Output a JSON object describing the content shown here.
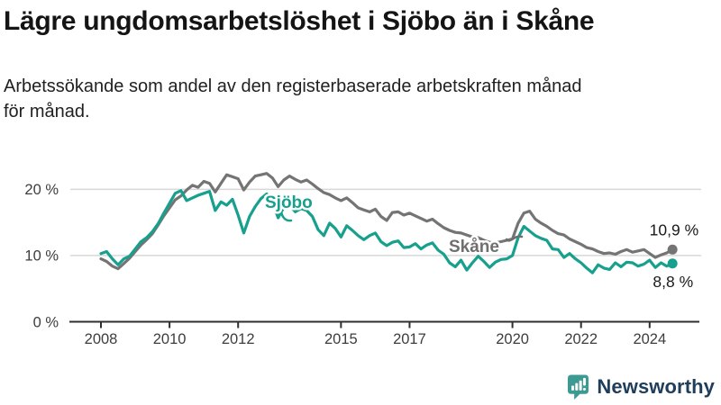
{
  "header": {
    "title": "Lägre ungdomsarbetslöshet i Sjöbo än i Skåne",
    "subtitle_line1": "Arbetssökande som andel av den registerbaserade arbetskraften månad",
    "subtitle_line2": "för månad."
  },
  "chart_data": {
    "type": "line",
    "title": "Lägre ungdomsarbetslöshet i Sjöbo än i Skåne",
    "subtitle": "Arbetssökande som andel av den registerbaserade arbetskraften månad för månad.",
    "x_start": 2008,
    "x_step_years": 0.1666667,
    "xlim": [
      2007.9,
      2025.4
    ],
    "ylim": [
      0,
      28
    ],
    "grid": "horizontal-only",
    "legend_position": "inline-labels",
    "x_ticks": [
      2008,
      2010,
      2012,
      2015,
      2017,
      2020,
      2022,
      2024
    ],
    "y_ticks": [
      {
        "value": 0,
        "label": "0 %"
      },
      {
        "value": 10,
        "label": "10 %"
      },
      {
        "value": 20,
        "label": "20 %"
      }
    ],
    "series": [
      {
        "name": "Skåne",
        "color": "#747474",
        "label_color": "#6f6f6f",
        "end_label": "10,9 %",
        "end_value": 10.9,
        "values": [
          9.5,
          9.1,
          8.4,
          8.0,
          8.8,
          9.6,
          10.6,
          11.6,
          12.4,
          13.3,
          14.6,
          16.0,
          17.2,
          18.4,
          19.0,
          19.9,
          20.6,
          20.3,
          21.2,
          20.9,
          19.6,
          20.9,
          22.2,
          21.9,
          21.6,
          19.9,
          21.1,
          22.0,
          22.2,
          22.4,
          21.7,
          20.4,
          21.4,
          22.0,
          21.5,
          21.1,
          21.4,
          20.8,
          20.1,
          19.5,
          19.2,
          18.7,
          18.3,
          18.7,
          18.0,
          17.2,
          16.9,
          16.6,
          17.0,
          15.9,
          15.3,
          16.5,
          16.6,
          16.1,
          16.4,
          16.0,
          15.6,
          15.2,
          15.5,
          14.8,
          14.2,
          13.8,
          13.5,
          13.4,
          13.1,
          12.8,
          12.7,
          12.3,
          12.0,
          11.9,
          12.1,
          12.3,
          12.5,
          14.9,
          16.4,
          16.7,
          15.5,
          14.9,
          14.4,
          13.8,
          13.3,
          13.1,
          12.5,
          12.1,
          11.7,
          11.2,
          11.0,
          10.6,
          10.3,
          10.4,
          10.2,
          10.6,
          10.9,
          10.5,
          10.7,
          10.9,
          10.3,
          9.7,
          10.1,
          10.4,
          10.9
        ]
      },
      {
        "name": "Sjöbo",
        "color": "#17a08d",
        "label_color": "#17a08d",
        "end_label": "8,8 %",
        "end_value": 8.8,
        "values": [
          10.3,
          10.6,
          9.5,
          8.6,
          9.5,
          9.9,
          11.0,
          12.1,
          12.7,
          13.6,
          14.8,
          16.4,
          17.9,
          19.4,
          19.8,
          18.3,
          18.7,
          19.1,
          19.4,
          19.7,
          16.8,
          18.1,
          17.6,
          18.5,
          16.1,
          13.4,
          15.9,
          17.4,
          18.6,
          19.3,
          18.1,
          15.7,
          17.3,
          17.6,
          16.6,
          17.1,
          16.8,
          15.9,
          13.9,
          13.0,
          14.9,
          14.1,
          12.8,
          14.5,
          13.8,
          13.0,
          12.4,
          13.0,
          13.4,
          12.1,
          11.5,
          12.0,
          12.2,
          11.2,
          11.3,
          11.8,
          11.0,
          11.6,
          11.9,
          10.8,
          10.2,
          8.9,
          8.3,
          9.3,
          7.8,
          8.9,
          9.9,
          9.1,
          8.2,
          9.0,
          9.4,
          9.5,
          10.0,
          12.7,
          14.4,
          13.7,
          13.0,
          12.6,
          12.3,
          11.0,
          10.9,
          9.7,
          10.3,
          9.5,
          8.9,
          8.1,
          7.4,
          8.6,
          8.1,
          7.9,
          8.9,
          8.3,
          9.0,
          8.9,
          8.4,
          8.7,
          9.3,
          8.2,
          8.9,
          8.4,
          8.8
        ]
      }
    ],
    "colors": {
      "gridline": "#d8d8d8",
      "axis": "#2f2f2f",
      "tick_label": "#3d3d3d",
      "end_label": "#1a1a1a"
    }
  },
  "footer": {
    "brand": "Newsworthy",
    "brand_icon": "newsworthy-speech-bubble-bars-icon",
    "brand_teal": "#3d9a92",
    "brand_text_color": "#1f3e5c"
  }
}
